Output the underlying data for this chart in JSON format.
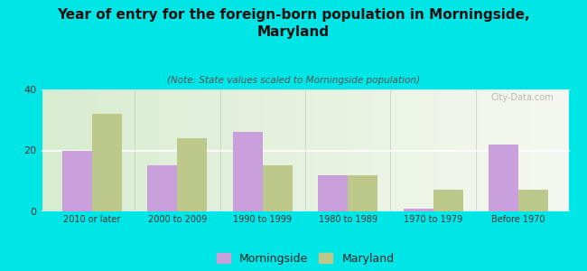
{
  "title": "Year of entry for the foreign-born population in Morningside,\nMaryland",
  "subtitle": "(Note: State values scaled to Morningside population)",
  "categories": [
    "2010 or later",
    "2000 to 2009",
    "1990 to 1999",
    "1980 to 1989",
    "1970 to 1979",
    "Before 1970"
  ],
  "morningside_values": [
    20,
    15,
    26,
    12,
    1,
    22
  ],
  "maryland_values": [
    32,
    24,
    15,
    12,
    7,
    7
  ],
  "morningside_color": "#c9a0dc",
  "maryland_color": "#bcc98a",
  "background_color": "#00e5e5",
  "ylim": [
    0,
    40
  ],
  "yticks": [
    0,
    20,
    40
  ],
  "bar_width": 0.35,
  "title_fontsize": 11,
  "subtitle_fontsize": 7.5,
  "legend_fontsize": 9,
  "watermark": "City-Data.com"
}
